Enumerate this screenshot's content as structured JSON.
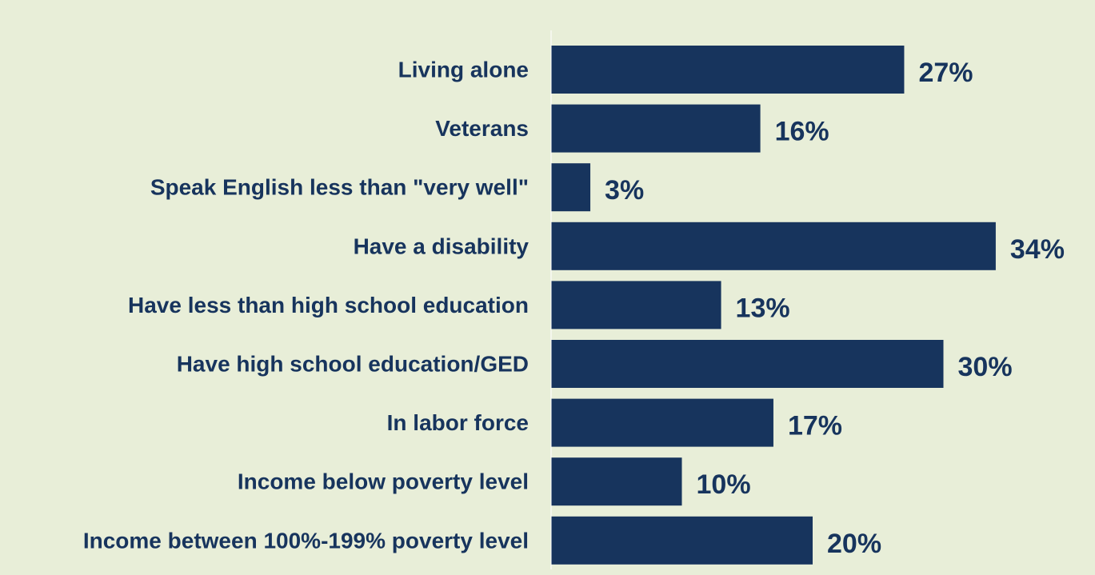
{
  "colors": {
    "background": "#e8eed8",
    "bar": "#17345d",
    "text": "#17345d",
    "axis": "#ffffff"
  },
  "chart_data": {
    "type": "bar",
    "orientation": "horizontal",
    "categories": [
      "Living alone",
      "Veterans",
      "Speak English less than \"very well\"",
      "Have a disability",
      "Have less than high school education",
      "Have high school education/GED",
      "In labor force",
      "Income below poverty level",
      "Income between 100%-199% poverty level"
    ],
    "values": [
      27,
      16,
      3,
      34,
      13,
      30,
      17,
      10,
      20
    ],
    "value_labels": [
      "27%",
      "16%",
      "3%",
      "34%",
      "13%",
      "30%",
      "17%",
      "10%",
      "20%"
    ],
    "xlim": [
      0,
      34
    ],
    "grid": false,
    "legend": "none"
  }
}
